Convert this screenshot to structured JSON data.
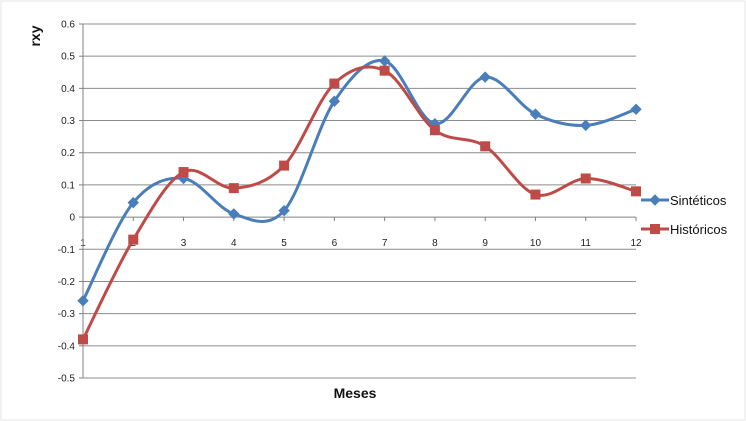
{
  "chart_data": {
    "type": "line",
    "title": "",
    "xlabel": "Meses",
    "ylabel": "rxy",
    "categories": [
      "1",
      "2",
      "3",
      "4",
      "5",
      "6",
      "7",
      "8",
      "9",
      "10",
      "11",
      "12"
    ],
    "ylim": [
      -0.5,
      0.6
    ],
    "yticks": [
      "0.6",
      "0.5",
      "0.4",
      "0.3",
      "0.2",
      "0.1",
      "0",
      "-0.1",
      "-0.2",
      "-0.3",
      "-0.4",
      "-0.5"
    ],
    "grid": true,
    "smooth": true,
    "legend_position": "right",
    "series": [
      {
        "name": "Sintéticos",
        "color": "#4a7ebb",
        "marker": "diamond",
        "values": [
          -0.26,
          0.045,
          0.12,
          0.01,
          0.02,
          0.36,
          0.485,
          0.29,
          0.435,
          0.32,
          0.285,
          0.335
        ]
      },
      {
        "name": "Históricos",
        "color": "#be4b48",
        "marker": "square",
        "values": [
          -0.38,
          -0.07,
          0.14,
          0.09,
          0.16,
          0.415,
          0.455,
          0.27,
          0.22,
          0.07,
          0.12,
          0.08
        ]
      }
    ]
  }
}
